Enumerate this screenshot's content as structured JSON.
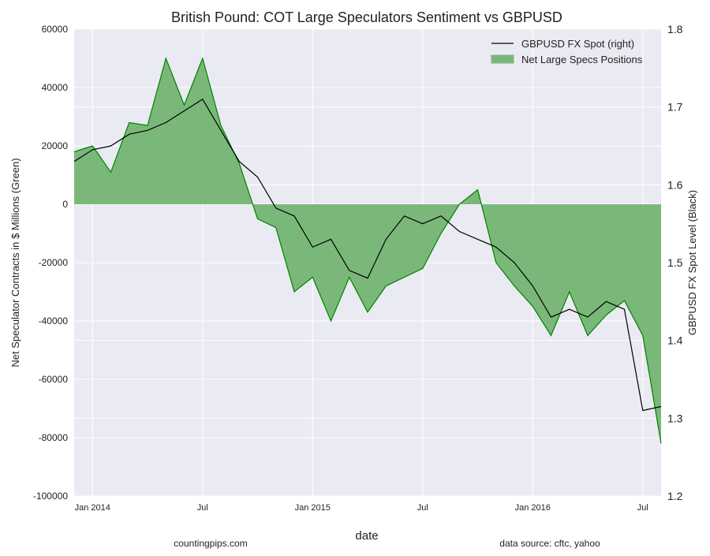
{
  "chart_data": {
    "type": "area-line",
    "title": "British Pound: COT Large Speculators Sentiment vs GBPUSD",
    "xlabel": "date",
    "ylabel": "Net Speculator Contracts in $ Millions (Green)",
    "y2label": "GBPUSD FX Spot Level (Black)",
    "footer_left": "countingpips.com",
    "footer_right": "data source: cftc, yahoo",
    "x": [
      "2013-12",
      "2014-01",
      "2014-02",
      "2014-03",
      "2014-04",
      "2014-05",
      "2014-06",
      "2014-07",
      "2014-08",
      "2014-09",
      "2014-10",
      "2014-11",
      "2014-12",
      "2015-01",
      "2015-02",
      "2015-03",
      "2015-04",
      "2015-05",
      "2015-06",
      "2015-07",
      "2015-08",
      "2015-09",
      "2015-10",
      "2015-11",
      "2015-12",
      "2016-01",
      "2016-02",
      "2016-03",
      "2016-04",
      "2016-05",
      "2016-06",
      "2016-07",
      "2016-08"
    ],
    "xlim": [
      "2013-12",
      "2016-08"
    ],
    "xticks": [
      {
        "value": "2014-01",
        "label": "Jan 2014"
      },
      {
        "value": "2014-07",
        "label": "Jul"
      },
      {
        "value": "2015-01",
        "label": "Jan 2015"
      },
      {
        "value": "2015-07",
        "label": "Jul"
      },
      {
        "value": "2016-01",
        "label": "Jan 2016"
      },
      {
        "value": "2016-07",
        "label": "Jul"
      }
    ],
    "ylim": [
      -100000,
      60000
    ],
    "yticks": [
      -100000,
      -80000,
      -60000,
      -40000,
      -20000,
      0,
      20000,
      40000,
      60000
    ],
    "y2lim": [
      1.2,
      1.8
    ],
    "y2ticks": [
      1.2,
      1.3,
      1.4,
      1.5,
      1.6,
      1.7,
      1.8
    ],
    "grid": true,
    "legend": "upper right",
    "series": [
      {
        "name": "GBPUSD FX Spot (right)",
        "color": "#000000",
        "axis": "y2",
        "kind": "line",
        "values": [
          1.63,
          1.645,
          1.65,
          1.665,
          1.67,
          1.68,
          1.695,
          1.71,
          1.67,
          1.63,
          1.61,
          1.57,
          1.56,
          1.52,
          1.53,
          1.49,
          1.48,
          1.53,
          1.56,
          1.55,
          1.56,
          1.54,
          1.53,
          1.52,
          1.5,
          1.47,
          1.43,
          1.44,
          1.43,
          1.45,
          1.44,
          1.31,
          1.315
        ]
      },
      {
        "name": "Net Large Specs Positions",
        "color": "#008000",
        "fill": "#7ab87a",
        "axis": "y",
        "kind": "area",
        "values": [
          18000,
          20000,
          11000,
          28000,
          27000,
          50000,
          34000,
          50000,
          27000,
          14000,
          -5000,
          -8000,
          -30000,
          -25000,
          -40000,
          -25000,
          -37000,
          -28000,
          -25000,
          -22000,
          -10000,
          0,
          5000,
          -20000,
          -28000,
          -35000,
          -45000,
          -30000,
          -45000,
          -38000,
          -33000,
          -45000,
          -82000
        ]
      }
    ]
  }
}
